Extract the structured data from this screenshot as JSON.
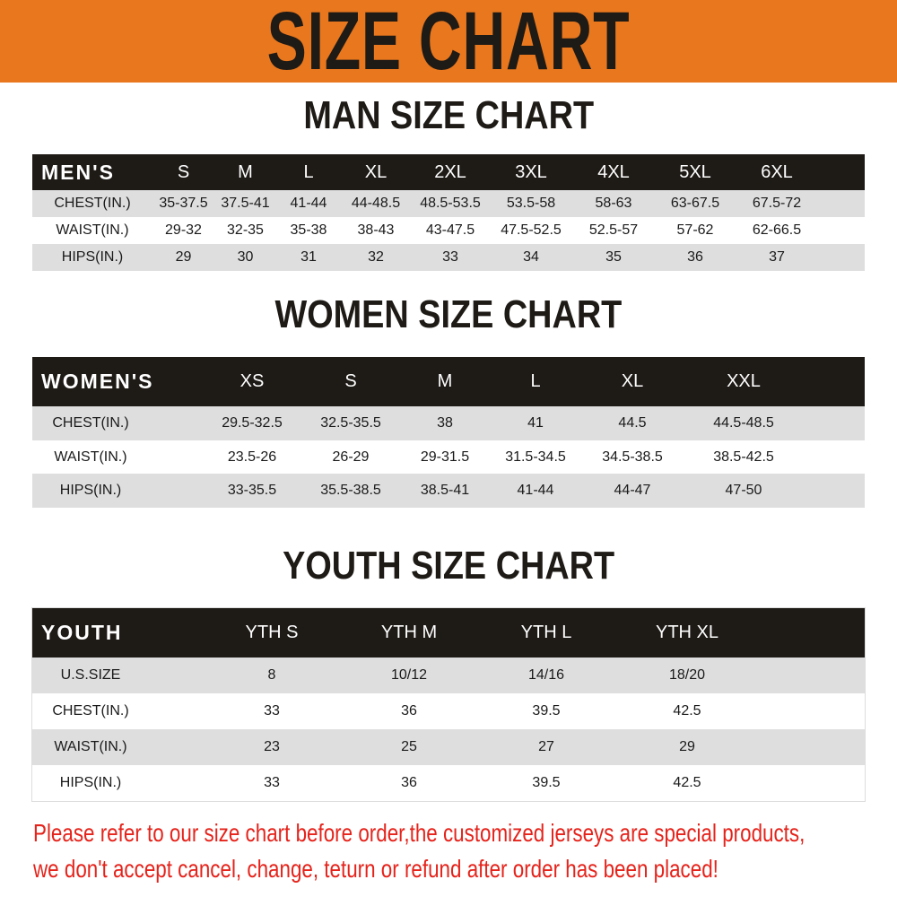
{
  "title": "SIZE CHART",
  "colors": {
    "banner": "#e8771e",
    "header_row": "#1e1a16",
    "stripe": "#dedede",
    "notice": "#e5231b"
  },
  "men": {
    "title": "MAN SIZE CHART",
    "header": "MEN'S",
    "sizes": [
      "S",
      "M",
      "L",
      "XL",
      "2XL",
      "3XL",
      "4XL",
      "5XL",
      "6XL"
    ],
    "rows": [
      {
        "label": "CHEST(IN.)",
        "values": [
          "35-37.5",
          "37.5-41",
          "41-44",
          "44-48.5",
          "48.5-53.5",
          "53.5-58",
          "58-63",
          "63-67.5",
          "67.5-72"
        ]
      },
      {
        "label": "WAIST(IN.)",
        "values": [
          "29-32",
          "32-35",
          "35-38",
          "38-43",
          "43-47.5",
          "47.5-52.5",
          "52.5-57",
          "57-62",
          "62-66.5"
        ]
      },
      {
        "label": "HIPS(IN.)",
        "values": [
          "29",
          "30",
          "31",
          "32",
          "33",
          "34",
          "35",
          "36",
          "37"
        ]
      }
    ]
  },
  "women": {
    "title": "WOMEN SIZE CHART",
    "header": "WOMEN'S",
    "sizes": [
      "XS",
      "S",
      "M",
      "L",
      "XL",
      "XXL"
    ],
    "rows": [
      {
        "label": "CHEST(IN.)",
        "values": [
          "29.5-32.5",
          "32.5-35.5",
          "38",
          "41",
          "44.5",
          "44.5-48.5"
        ]
      },
      {
        "label": "WAIST(IN.)",
        "values": [
          "23.5-26",
          "26-29",
          "29-31.5",
          "31.5-34.5",
          "34.5-38.5",
          "38.5-42.5"
        ]
      },
      {
        "label": "HIPS(IN.)",
        "values": [
          "33-35.5",
          "35.5-38.5",
          "38.5-41",
          "41-44",
          "44-47",
          "47-50"
        ]
      }
    ]
  },
  "youth": {
    "title": "YOUTH SIZE CHART",
    "header": "YOUTH",
    "sizes": [
      "YTH S",
      "YTH M",
      "YTH L",
      "YTH XL"
    ],
    "rows": [
      {
        "label": "U.S.SIZE",
        "values": [
          "8",
          "10/12",
          "14/16",
          "18/20"
        ]
      },
      {
        "label": "CHEST(IN.)",
        "values": [
          "33",
          "36",
          "39.5",
          "42.5"
        ]
      },
      {
        "label": "WAIST(IN.)",
        "values": [
          "23",
          "25",
          "27",
          "29"
        ]
      },
      {
        "label": "HIPS(IN.)",
        "values": [
          "33",
          "36",
          "39.5",
          "42.5"
        ]
      }
    ]
  },
  "notice": [
    "Please refer to our size chart before order,the customized jerseys are special products,",
    "we don't accept cancel, change, teturn or refund after order has been placed!"
  ]
}
